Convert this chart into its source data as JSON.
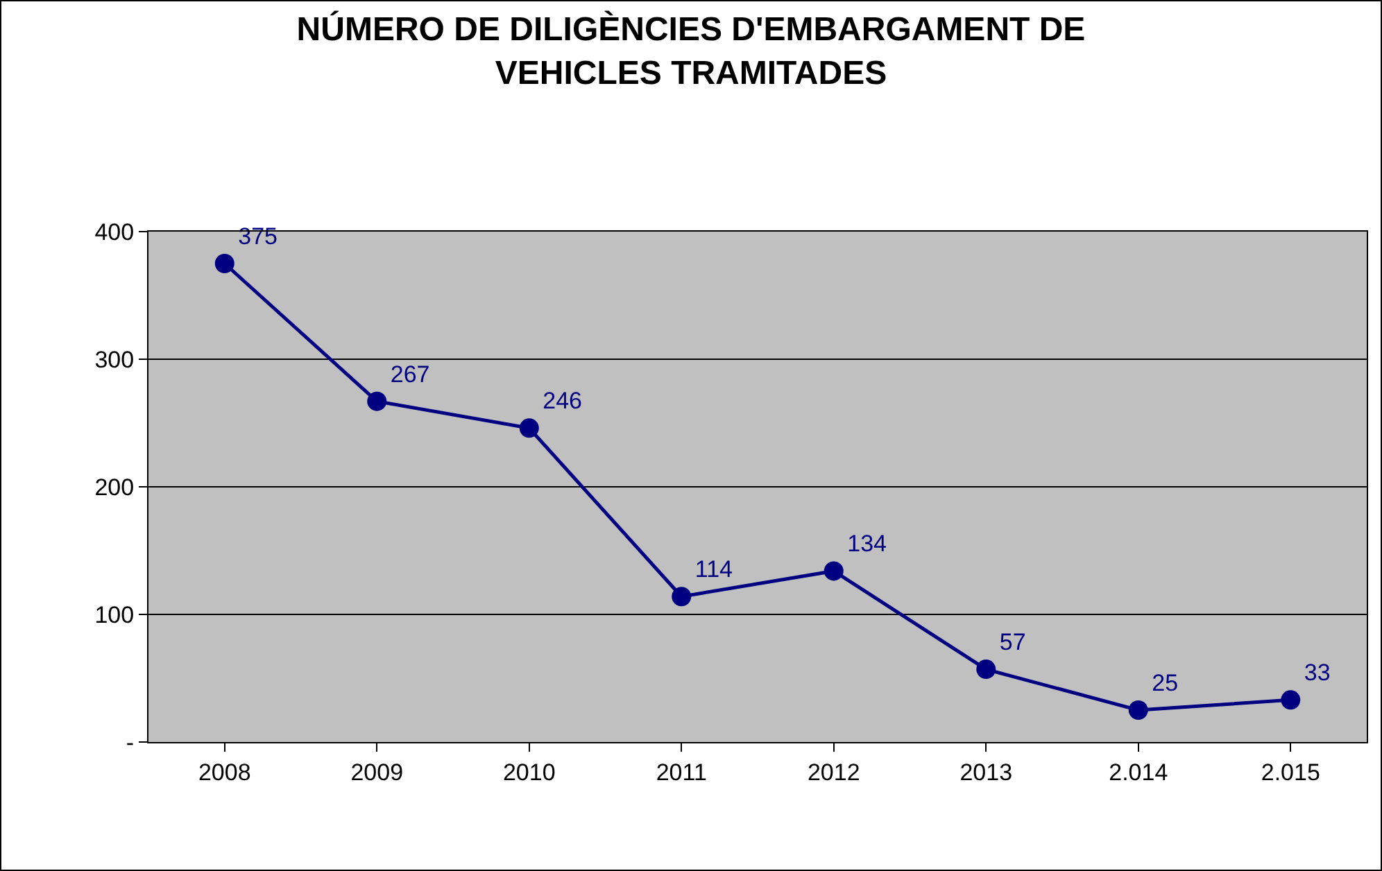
{
  "chart_data": {
    "type": "line",
    "title": "NÚMERO DE DILIGÈNCIES D'EMBARGAMENT DE VEHICLES TRAMITADES",
    "categories": [
      "2008",
      "2009",
      "2010",
      "2011",
      "2012",
      "2013",
      "2.014",
      "2.015"
    ],
    "series": [
      {
        "color": "#000080",
        "values": [
          375,
          267,
          246,
          114,
          134,
          57,
          25,
          33
        ]
      }
    ],
    "ylim": [
      0,
      400
    ],
    "yticks": [
      {
        "value": 0,
        "label": "-"
      },
      100,
      200,
      300,
      400
    ],
    "grid": "y",
    "marker": "circle",
    "line_style": "solid",
    "data_labels": true
  }
}
